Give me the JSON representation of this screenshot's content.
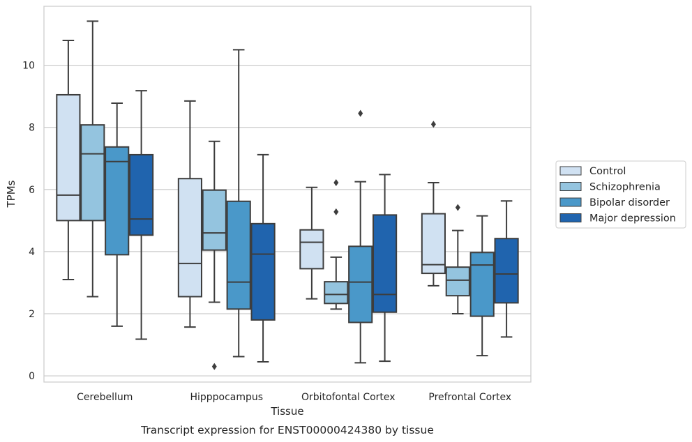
{
  "chart_data": {
    "type": "box",
    "title": "Transcript expression for ENST00000424380 by tissue",
    "xlabel": "Tissue",
    "ylabel": "TPMs",
    "ylim": [
      -0.2,
      11.9
    ],
    "yticks": [
      0,
      2,
      4,
      6,
      8,
      10
    ],
    "grid": "horizontal",
    "legend_position": "right",
    "categories": [
      "Cerebellum",
      "Hipppocampus",
      "Orbitofontal Cortex",
      "Prefrontal Cortex"
    ],
    "series": [
      {
        "name": "Control",
        "color": "#d0e1f2",
        "boxes": [
          {
            "whislo": 3.1,
            "q1": 5.0,
            "med": 5.82,
            "q3": 9.05,
            "whishi": 10.8,
            "fliers": []
          },
          {
            "whislo": 1.57,
            "q1": 2.55,
            "med": 3.62,
            "q3": 6.35,
            "whishi": 8.85,
            "fliers": []
          },
          {
            "whislo": 2.48,
            "q1": 3.45,
            "med": 4.3,
            "q3": 4.7,
            "whishi": 6.07,
            "fliers": []
          },
          {
            "whislo": 2.9,
            "q1": 3.3,
            "med": 3.58,
            "q3": 5.22,
            "whishi": 6.22,
            "fliers": [
              8.1
            ]
          }
        ]
      },
      {
        "name": "Schizophrenia",
        "color": "#94c4df",
        "boxes": [
          {
            "whislo": 2.55,
            "q1": 5.0,
            "med": 7.15,
            "q3": 8.08,
            "whishi": 11.42,
            "fliers": []
          },
          {
            "whislo": 2.37,
            "q1": 4.05,
            "med": 4.6,
            "q3": 5.98,
            "whishi": 7.55,
            "fliers": [
              0.3
            ]
          },
          {
            "whislo": 2.15,
            "q1": 2.33,
            "med": 2.62,
            "q3": 3.03,
            "whishi": 3.82,
            "fliers": [
              6.22,
              5.28
            ]
          },
          {
            "whislo": 2.0,
            "q1": 2.58,
            "med": 3.08,
            "q3": 3.5,
            "whishi": 4.68,
            "fliers": [
              5.42
            ]
          }
        ]
      },
      {
        "name": "Bipolar disorder",
        "color": "#4a98c9",
        "boxes": [
          {
            "whislo": 1.6,
            "q1": 3.9,
            "med": 6.9,
            "q3": 7.37,
            "whishi": 8.78,
            "fliers": []
          },
          {
            "whislo": 0.62,
            "q1": 2.15,
            "med": 3.02,
            "q3": 5.62,
            "whishi": 10.5,
            "fliers": []
          },
          {
            "whislo": 0.42,
            "q1": 1.72,
            "med": 3.02,
            "q3": 4.17,
            "whishi": 6.25,
            "fliers": [
              8.45
            ]
          },
          {
            "whislo": 0.65,
            "q1": 1.92,
            "med": 3.57,
            "q3": 3.97,
            "whishi": 5.15,
            "fliers": []
          }
        ]
      },
      {
        "name": "Major depression",
        "color": "#2064ae",
        "boxes": [
          {
            "whislo": 1.18,
            "q1": 4.53,
            "med": 5.05,
            "q3": 7.12,
            "whishi": 9.18,
            "fliers": []
          },
          {
            "whislo": 0.45,
            "q1": 1.8,
            "med": 3.92,
            "q3": 4.9,
            "whishi": 7.12,
            "fliers": []
          },
          {
            "whislo": 0.47,
            "q1": 2.05,
            "med": 2.62,
            "q3": 5.18,
            "whishi": 6.48,
            "fliers": []
          },
          {
            "whislo": 1.25,
            "q1": 2.35,
            "med": 3.28,
            "q3": 4.42,
            "whishi": 5.63,
            "fliers": []
          }
        ]
      }
    ]
  }
}
